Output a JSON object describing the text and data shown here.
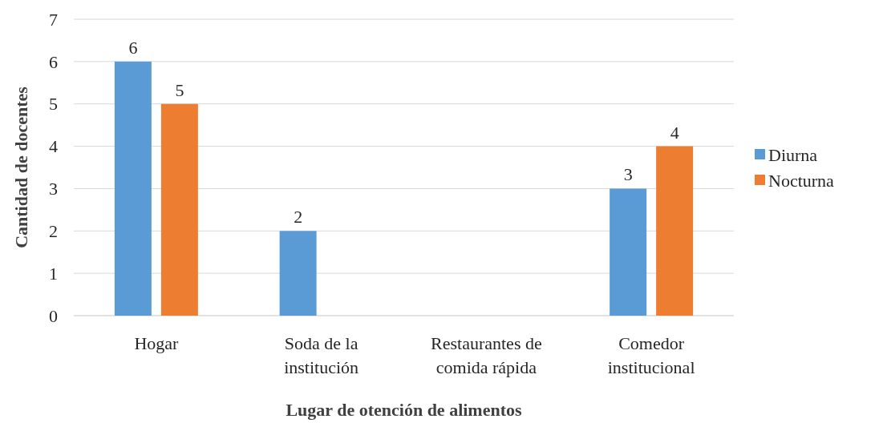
{
  "chart_data": {
    "type": "bar",
    "xlabel": "Lugar de otención de alimentos",
    "ylabel": "Cantidad de docentes",
    "categories": [
      "Hogar",
      "Soda de la institución",
      "Restaurantes de comida rápida",
      "Comedor institucional"
    ],
    "series": [
      {
        "name": "Diurna",
        "color": "#5b9bd5",
        "values": [
          6,
          2,
          null,
          3
        ]
      },
      {
        "name": "Nocturna",
        "color": "#ed7d31",
        "values": [
          5,
          null,
          null,
          4
        ]
      }
    ],
    "ylim": [
      0,
      7
    ],
    "yticks": [
      0,
      1,
      2,
      3,
      4,
      5,
      6,
      7
    ],
    "grid": "y",
    "legend": "right",
    "data_labels": true
  }
}
